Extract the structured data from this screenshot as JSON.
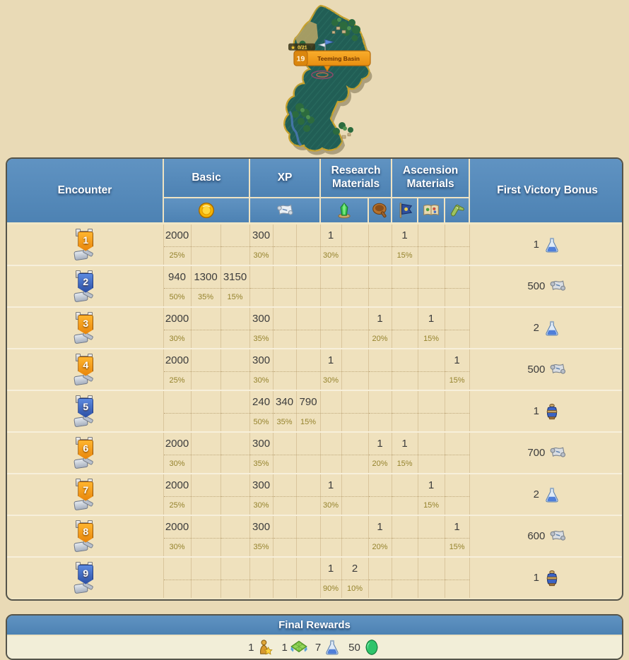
{
  "colors": {
    "header_blue": "#5a8cbd",
    "panel_bg": "#efe1bd",
    "page_bg": "#e9dab6",
    "orange_badge": "#f29a1d",
    "blue_badge": "#3c63b8",
    "percent_text": "#95832d"
  },
  "map": {
    "province_number": "19",
    "tooltip_label": "Teeming Basin",
    "progress": "0/21",
    "progress_star_icon": "star-icon"
  },
  "table": {
    "headers": {
      "encounter": "Encounter",
      "basic": "Basic",
      "xp": "XP",
      "research": "Research Materials",
      "ascension": "Ascension Materials",
      "first_victory": "First Victory Bonus"
    },
    "subheader_icons": [
      "coin",
      "xp-scroll",
      "research-crystal",
      "research-pan",
      "ascension-flag",
      "ascension-book",
      "ascension-scroll"
    ],
    "rows": [
      {
        "encounter": "1",
        "banner_color": "orange",
        "cells": [
          {
            "v": "2000",
            "p": "25%"
          },
          null,
          null,
          {
            "v": "300",
            "p": "30%"
          },
          null,
          null,
          {
            "v": "1",
            "p": "30%"
          },
          null,
          null,
          {
            "v": "1",
            "p": "15%"
          },
          null,
          null
        ],
        "bonus": {
          "qty": "1",
          "icon": "flask"
        }
      },
      {
        "encounter": "2",
        "banner_color": "blue",
        "cells": [
          {
            "v": "940",
            "p": "50%"
          },
          {
            "v": "1300",
            "p": "35%"
          },
          {
            "v": "3150",
            "p": "15%"
          },
          null,
          null,
          null,
          null,
          null,
          null,
          null,
          null,
          null
        ],
        "bonus": {
          "qty": "500",
          "icon": "scroll"
        }
      },
      {
        "encounter": "3",
        "banner_color": "orange",
        "cells": [
          {
            "v": "2000",
            "p": "30%"
          },
          null,
          null,
          {
            "v": "300",
            "p": "35%"
          },
          null,
          null,
          null,
          null,
          {
            "v": "1",
            "p": "20%"
          },
          null,
          {
            "v": "1",
            "p": "15%"
          },
          null
        ],
        "bonus": {
          "qty": "2",
          "icon": "flask"
        }
      },
      {
        "encounter": "4",
        "banner_color": "orange",
        "cells": [
          {
            "v": "2000",
            "p": "25%"
          },
          null,
          null,
          {
            "v": "300",
            "p": "30%"
          },
          null,
          null,
          {
            "v": "1",
            "p": "30%"
          },
          null,
          null,
          null,
          null,
          {
            "v": "1",
            "p": "15%"
          }
        ],
        "bonus": {
          "qty": "500",
          "icon": "scroll"
        }
      },
      {
        "encounter": "5",
        "banner_color": "blue",
        "cells": [
          null,
          null,
          null,
          {
            "v": "240",
            "p": "50%"
          },
          {
            "v": "340",
            "p": "35%"
          },
          {
            "v": "790",
            "p": "15%"
          },
          null,
          null,
          null,
          null,
          null,
          null
        ],
        "bonus": {
          "qty": "1",
          "icon": "urn"
        }
      },
      {
        "encounter": "6",
        "banner_color": "orange",
        "cells": [
          {
            "v": "2000",
            "p": "30%"
          },
          null,
          null,
          {
            "v": "300",
            "p": "35%"
          },
          null,
          null,
          null,
          null,
          {
            "v": "1",
            "p": "20%"
          },
          {
            "v": "1",
            "p": "15%"
          },
          null,
          null
        ],
        "bonus": {
          "qty": "700",
          "icon": "scroll"
        }
      },
      {
        "encounter": "7",
        "banner_color": "orange",
        "cells": [
          {
            "v": "2000",
            "p": "25%"
          },
          null,
          null,
          {
            "v": "300",
            "p": "30%"
          },
          null,
          null,
          {
            "v": "1",
            "p": "30%"
          },
          null,
          null,
          null,
          {
            "v": "1",
            "p": "15%"
          },
          null
        ],
        "bonus": {
          "qty": "2",
          "icon": "flask"
        }
      },
      {
        "encounter": "8",
        "banner_color": "orange",
        "cells": [
          {
            "v": "2000",
            "p": "30%"
          },
          null,
          null,
          {
            "v": "300",
            "p": "35%"
          },
          null,
          null,
          null,
          null,
          {
            "v": "1",
            "p": "20%"
          },
          null,
          null,
          {
            "v": "1",
            "p": "15%"
          }
        ],
        "bonus": {
          "qty": "600",
          "icon": "scroll"
        }
      },
      {
        "encounter": "9",
        "banner_color": "blue",
        "cells": [
          null,
          null,
          null,
          null,
          null,
          null,
          {
            "v": "1",
            "p": "90%"
          },
          {
            "v": "2",
            "p": "10%"
          },
          null,
          null,
          null,
          null
        ],
        "bonus": {
          "qty": "1",
          "icon": "urn"
        }
      }
    ]
  },
  "final_rewards": {
    "title": "Final Rewards",
    "items": [
      {
        "qty": "1",
        "icon": "statue"
      },
      {
        "qty": "1",
        "icon": "expansion"
      },
      {
        "qty": "7",
        "icon": "flask"
      },
      {
        "qty": "50",
        "icon": "gem"
      }
    ]
  }
}
